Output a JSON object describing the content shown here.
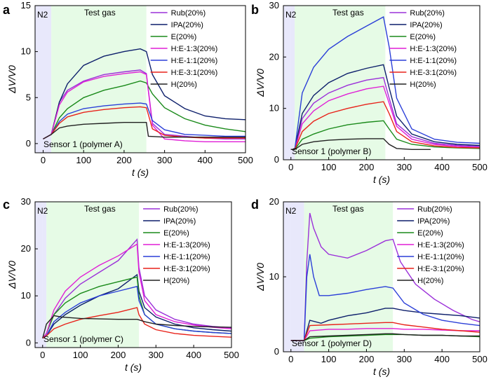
{
  "colors": {
    "Rub": "#9b30d9",
    "IPA": "#0d1f6b",
    "E": "#1a8a1a",
    "H:E-1:3": "#e01fd6",
    "H:E-1:1": "#2b3fd8",
    "H:E-3:1": "#e8221a",
    "H": "#222222",
    "n2_region": "#e8e8fb",
    "gas_region": "#e6fbe6"
  },
  "chart_data": [
    {
      "panel": "a",
      "type": "line",
      "xlabel": "t (s)",
      "ylabel": "ΔV/V0",
      "xlim": [
        -20,
        500
      ],
      "ylim": [
        -1,
        15
      ],
      "xticks": [
        0,
        100,
        200,
        300,
        400,
        500
      ],
      "yticks": [
        0,
        5,
        10,
        15
      ],
      "n2_label": "N2",
      "gas_label": "Test gas",
      "gas_window": [
        20,
        255
      ],
      "sensor_label": "Sensor 1 (polymer A)",
      "series": [
        {
          "name": "Rub(20%)",
          "key": "Rub",
          "x": [
            0,
            20,
            40,
            60,
            100,
            150,
            200,
            240,
            255,
            270,
            300,
            350,
            400,
            450,
            500
          ],
          "y": [
            0.5,
            1.0,
            4.5,
            5.8,
            6.8,
            7.5,
            7.8,
            8.0,
            7.6,
            2.2,
            1.0,
            0.8,
            0.6,
            0.5,
            0.5
          ]
        },
        {
          "name": "IPA(20%)",
          "key": "IPA",
          "x": [
            0,
            20,
            40,
            60,
            100,
            150,
            200,
            240,
            255,
            270,
            300,
            350,
            400,
            450,
            500
          ],
          "y": [
            0.5,
            1.0,
            4.5,
            6.5,
            8.5,
            9.5,
            10.0,
            10.3,
            10.0,
            7.5,
            5.2,
            3.8,
            3.0,
            2.7,
            2.6
          ]
        },
        {
          "name": "E(20%)",
          "key": "E",
          "x": [
            0,
            20,
            40,
            60,
            100,
            150,
            200,
            240,
            255,
            270,
            300,
            350,
            400,
            450,
            500
          ],
          "y": [
            0.5,
            1.0,
            2.8,
            3.8,
            5.0,
            5.8,
            6.3,
            6.8,
            6.6,
            5.4,
            3.9,
            2.7,
            2.0,
            1.6,
            1.3
          ]
        },
        {
          "name": "H:E-1:3(20%)",
          "key": "H:E-1:3",
          "x": [
            0,
            20,
            40,
            60,
            100,
            150,
            200,
            240,
            255,
            270,
            300,
            350,
            400,
            450,
            500
          ],
          "y": [
            0.5,
            1.0,
            4.2,
            5.6,
            6.7,
            7.3,
            7.6,
            7.8,
            7.5,
            2.0,
            0.5,
            0.3,
            0.2,
            0.2,
            0.2
          ]
        },
        {
          "name": "H:E-1:1(20%)",
          "key": "H:E-1:1",
          "x": [
            0,
            20,
            40,
            60,
            100,
            150,
            200,
            240,
            255,
            270,
            300,
            350,
            400,
            450,
            500
          ],
          "y": [
            0.5,
            1.0,
            2.4,
            3.2,
            3.8,
            4.1,
            4.3,
            4.4,
            4.3,
            2.5,
            1.5,
            1.0,
            0.9,
            0.8,
            0.8
          ]
        },
        {
          "name": "H:E-3:1(20%)",
          "key": "H:E-3:1",
          "x": [
            0,
            20,
            40,
            60,
            100,
            150,
            200,
            240,
            255,
            270,
            300,
            350,
            400,
            450,
            500
          ],
          "y": [
            0.5,
            1.0,
            2.2,
            2.9,
            3.4,
            3.7,
            3.9,
            4.0,
            3.9,
            1.6,
            0.9,
            0.7,
            0.6,
            0.6,
            0.6
          ]
        },
        {
          "name": "H(20%)",
          "key": "H",
          "x": [
            0,
            20,
            40,
            60,
            100,
            150,
            200,
            240,
            255,
            260,
            300,
            350,
            400,
            450,
            500
          ],
          "y": [
            0.5,
            1.0,
            1.7,
            1.9,
            2.1,
            2.2,
            2.3,
            2.3,
            2.3,
            0.8,
            0.7,
            0.7,
            0.7,
            0.7,
            0.7
          ]
        }
      ]
    },
    {
      "panel": "b",
      "type": "line",
      "xlabel": "t (s)",
      "ylabel": "ΔV/V0",
      "xlim": [
        -20,
        500
      ],
      "ylim": [
        0,
        30
      ],
      "xticks": [
        0,
        100,
        200,
        300,
        400,
        500
      ],
      "yticks": [
        0,
        10,
        20,
        30
      ],
      "n2_label": "N2",
      "gas_label": "Test gas",
      "gas_window": [
        10,
        250
      ],
      "sensor_label": "Sensor 1 (polymer B)",
      "series": [
        {
          "name": "Rub(20%)",
          "key": "Rub",
          "x": [
            0,
            10,
            30,
            60,
            100,
            150,
            200,
            245,
            260,
            280,
            320,
            380,
            440,
            500
          ],
          "y": [
            2,
            2,
            8,
            11,
            13,
            14.5,
            15.5,
            16.0,
            12,
            7,
            4.5,
            3.2,
            2.8,
            2.6
          ]
        },
        {
          "name": "IPA(20%)",
          "key": "IPA",
          "x": [
            0,
            10,
            30,
            60,
            100,
            150,
            200,
            245,
            260,
            280,
            320,
            380,
            440,
            500
          ],
          "y": [
            2,
            2,
            9,
            12.5,
            15,
            16.8,
            17.8,
            18.5,
            14,
            8.5,
            5.0,
            3.5,
            3.0,
            2.8
          ]
        },
        {
          "name": "E(20%)",
          "key": "E",
          "x": [
            0,
            10,
            30,
            60,
            100,
            150,
            200,
            245,
            260,
            280,
            320,
            380,
            440,
            500
          ],
          "y": [
            2,
            2,
            4,
            5,
            6,
            6.8,
            7.3,
            7.6,
            6,
            4,
            3.0,
            2.5,
            2.3,
            2.2
          ]
        },
        {
          "name": "H:E-1:3(20%)",
          "key": "H:E-1:3",
          "x": [
            0,
            10,
            30,
            60,
            100,
            150,
            200,
            245,
            260,
            280,
            320,
            380,
            440,
            500
          ],
          "y": [
            2,
            2,
            7,
            9.5,
            11.5,
            12.8,
            13.8,
            14.3,
            11,
            6.5,
            4.0,
            3.0,
            2.6,
            2.4
          ]
        },
        {
          "name": "H:E-1:1(20%)",
          "key": "H:E-1:1",
          "x": [
            0,
            10,
            30,
            60,
            100,
            150,
            200,
            245,
            260,
            280,
            320,
            380,
            440,
            500
          ],
          "y": [
            2,
            2,
            13,
            18,
            21.5,
            24,
            26,
            27.8,
            22,
            12,
            6.0,
            4.0,
            3.4,
            3.2
          ]
        },
        {
          "name": "H:E-3:1(20%)",
          "key": "H:E-3:1",
          "x": [
            0,
            10,
            30,
            60,
            100,
            150,
            200,
            245,
            260,
            280,
            320,
            380,
            440,
            500
          ],
          "y": [
            2,
            2,
            5.5,
            7.5,
            9,
            10,
            10.8,
            11.3,
            9,
            5.5,
            3.5,
            2.7,
            2.4,
            2.3
          ]
        },
        {
          "name": "H(20%)",
          "key": "H",
          "x": [
            0,
            10,
            30,
            60,
            100,
            150,
            200,
            245,
            260,
            280,
            320,
            370
          ],
          "y": [
            2,
            2,
            3,
            3.5,
            3.8,
            4.0,
            4.1,
            4.1,
            3.0,
            2.2,
            2.0,
            2.0
          ]
        }
      ]
    },
    {
      "panel": "c",
      "type": "line",
      "xlabel": "t (s)",
      "ylabel": "ΔV/V0",
      "xlim": [
        -20,
        500
      ],
      "ylim": [
        -1,
        30
      ],
      "xticks": [
        0,
        100,
        200,
        300,
        400,
        500
      ],
      "yticks": [
        0,
        10,
        20,
        30
      ],
      "n2_label": "N2",
      "gas_label": "Test gas",
      "gas_window": [
        10,
        255
      ],
      "sensor_label": "Sensor 1 (polymer C)",
      "series": [
        {
          "name": "Rub(20%)",
          "key": "Rub",
          "x": [
            0,
            10,
            30,
            60,
            100,
            150,
            200,
            250,
            255,
            270,
            300,
            350,
            400,
            450,
            500
          ],
          "y": [
            1,
            2,
            6,
            9.5,
            12.5,
            15,
            17.5,
            22,
            16,
            10,
            7,
            5,
            4,
            3.5,
            3.2
          ]
        },
        {
          "name": "IPA(20%)",
          "key": "IPA",
          "x": [
            0,
            10,
            30,
            60,
            100,
            150,
            200,
            250,
            255,
            270,
            300,
            350,
            400,
            450,
            500
          ],
          "y": [
            1,
            1.5,
            4,
            6,
            8,
            10,
            11.5,
            14.5,
            11,
            7.5,
            5.5,
            4,
            3.2,
            2.8,
            2.5
          ]
        },
        {
          "name": "E(20%)",
          "key": "E",
          "x": [
            0,
            10,
            30,
            60,
            100,
            150,
            200,
            250,
            255,
            270,
            300,
            350,
            400,
            450,
            500
          ],
          "y": [
            1,
            2,
            6,
            8.5,
            10.5,
            12,
            13,
            14,
            10,
            6,
            4,
            3,
            2.5,
            2.2,
            2.0
          ]
        },
        {
          "name": "H:E-1:3(20%)",
          "key": "H:E-1:3",
          "x": [
            0,
            10,
            30,
            60,
            100,
            150,
            200,
            250,
            255,
            270,
            300,
            350,
            400,
            450,
            500
          ],
          "y": [
            1,
            2,
            7,
            11,
            14,
            16.5,
            18.5,
            21,
            15,
            9,
            6,
            4.5,
            3.8,
            3.3,
            3.0
          ]
        },
        {
          "name": "H:E-1:1(20%)",
          "key": "H:E-1:1",
          "x": [
            0,
            10,
            30,
            60,
            100,
            150,
            200,
            250,
            255,
            270,
            300,
            350,
            400,
            450,
            500
          ],
          "y": [
            1,
            1.5,
            4.5,
            6.5,
            8.5,
            10,
            11,
            12,
            9,
            6,
            4,
            3,
            2.5,
            2.2,
            2.0
          ]
        },
        {
          "name": "H:E-3:1(20%)",
          "key": "H:E-3:1",
          "x": [
            0,
            10,
            30,
            60,
            100,
            150,
            200,
            250,
            255,
            270,
            300,
            350,
            400,
            450,
            500
          ],
          "y": [
            1,
            1.5,
            3,
            4,
            5,
            5.8,
            6.5,
            7.5,
            6,
            4,
            2.8,
            2,
            1.6,
            1.4,
            1.2
          ]
        },
        {
          "name": "H(20%)",
          "key": "H",
          "x": [
            0,
            10,
            30,
            50,
            100,
            150,
            200,
            250,
            255,
            270,
            300,
            350,
            400,
            450,
            500
          ],
          "y": [
            1,
            4,
            5.8,
            5.5,
            5.2,
            5.1,
            5.0,
            5.0,
            4.9,
            4.5,
            4.0,
            3.7,
            3.5,
            3.4,
            3.3
          ]
        }
      ]
    },
    {
      "panel": "d",
      "type": "line",
      "xlabel": "t (s)",
      "ylabel": "ΔV/V0",
      "xlim": [
        -20,
        500
      ],
      "ylim": [
        0,
        20
      ],
      "xticks": [
        0,
        100,
        200,
        300,
        400,
        500
      ],
      "yticks": [
        0,
        10,
        20
      ],
      "n2_label": "N2",
      "gas_label": "Test gas",
      "gas_window": [
        35,
        270
      ],
      "sensor_label": "Sensor 1 (polymer D)",
      "series": [
        {
          "name": "Rub(20%)",
          "key": "Rub",
          "x": [
            0,
            35,
            42,
            50,
            60,
            80,
            100,
            150,
            200,
            250,
            270,
            290,
            330,
            380,
            430,
            480,
            500
          ],
          "y": [
            1.5,
            1.5,
            12,
            18.5,
            16.5,
            14,
            13,
            12.5,
            13.5,
            14.8,
            15,
            12,
            9,
            7,
            5.5,
            4.3,
            4.0
          ]
        },
        {
          "name": "IPA(20%)",
          "key": "IPA",
          "x": [
            0,
            35,
            50,
            80,
            100,
            150,
            200,
            250,
            270,
            300,
            350,
            400,
            450,
            500
          ],
          "y": [
            1.5,
            1.5,
            4.2,
            3.8,
            4.2,
            4.8,
            5.2,
            5.8,
            5.8,
            5.5,
            5.2,
            5.0,
            4.8,
            4.5
          ]
        },
        {
          "name": "E(20%)",
          "key": "E",
          "x": [
            0,
            35,
            50,
            100,
            150,
            200,
            250,
            270,
            300,
            350,
            400,
            450,
            500
          ],
          "y": [
            1.5,
            1.5,
            1.8,
            2.0,
            2.1,
            2.2,
            2.3,
            2.3,
            2.3,
            2.2,
            2.2,
            2.1,
            2.0
          ]
        },
        {
          "name": "H:E-1:3(20%)",
          "key": "H:E-1:3",
          "x": [
            0,
            35,
            50,
            100,
            150,
            200,
            250,
            270,
            300,
            350,
            400,
            450,
            500
          ],
          "y": [
            1.5,
            1.5,
            2.8,
            3.0,
            3.0,
            3.1,
            3.1,
            3.1,
            3.0,
            3.0,
            2.9,
            2.8,
            2.8
          ]
        },
        {
          "name": "H:E-1:1(20%)",
          "key": "H:E-1:1",
          "x": [
            0,
            35,
            42,
            50,
            60,
            75,
            100,
            150,
            200,
            250,
            270,
            300,
            350,
            400,
            450,
            500
          ],
          "y": [
            1.5,
            1.5,
            10,
            13,
            10,
            7.5,
            7.5,
            7.8,
            8.3,
            8.7,
            8.5,
            6.5,
            5,
            4.2,
            3.8,
            3.5
          ]
        },
        {
          "name": "H:E-3:1(20%)",
          "key": "H:E-3:1",
          "x": [
            0,
            35,
            50,
            100,
            150,
            200,
            250,
            270,
            300,
            350,
            400,
            450,
            500
          ],
          "y": [
            1.5,
            1.5,
            3.5,
            3.6,
            3.7,
            3.8,
            3.9,
            3.9,
            3.6,
            3.3,
            3.0,
            2.8,
            2.6
          ]
        },
        {
          "name": "H(20%)",
          "key": "H",
          "x": [
            0,
            35,
            50,
            100,
            150,
            200,
            250,
            270,
            300,
            350,
            400,
            450,
            500
          ],
          "y": [
            1.5,
            1.5,
            2.0,
            2.1,
            2.2,
            2.3,
            2.4,
            2.4,
            2.3,
            2.2,
            2.2,
            2.1,
            2.1
          ]
        }
      ]
    }
  ]
}
